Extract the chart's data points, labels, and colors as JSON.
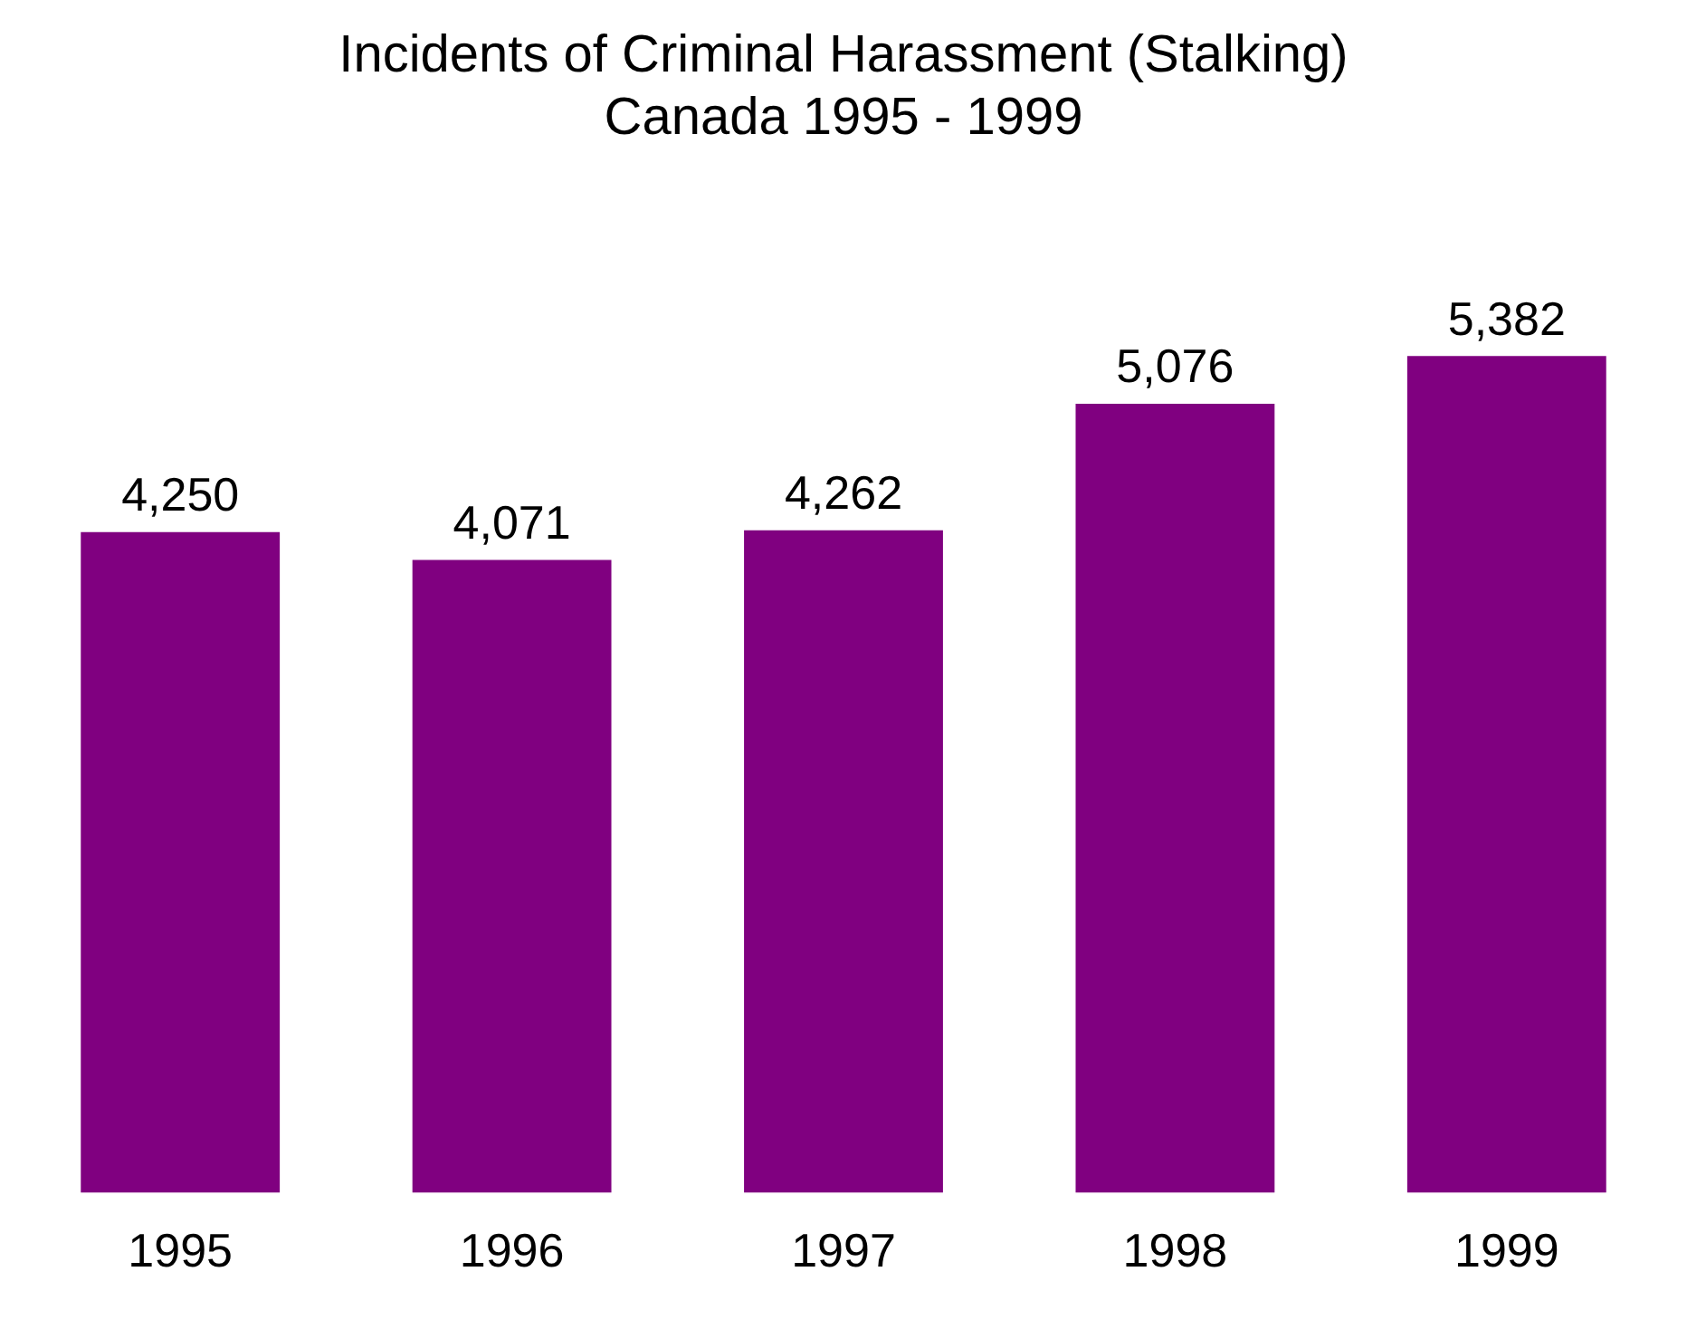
{
  "chart_data": {
    "type": "bar",
    "title": "Incidents of Criminal Harassment (Stalking)",
    "subtitle": "Canada 1995 - 1999",
    "categories": [
      "1995",
      "1996",
      "1997",
      "1998",
      "1999"
    ],
    "values": [
      4250,
      4071,
      4262,
      5076,
      5382
    ],
    "value_labels": [
      "4,250",
      "4,071",
      "4,262",
      "5,076",
      "5,382"
    ],
    "color": "#800080",
    "grid": false,
    "legend": false
  }
}
